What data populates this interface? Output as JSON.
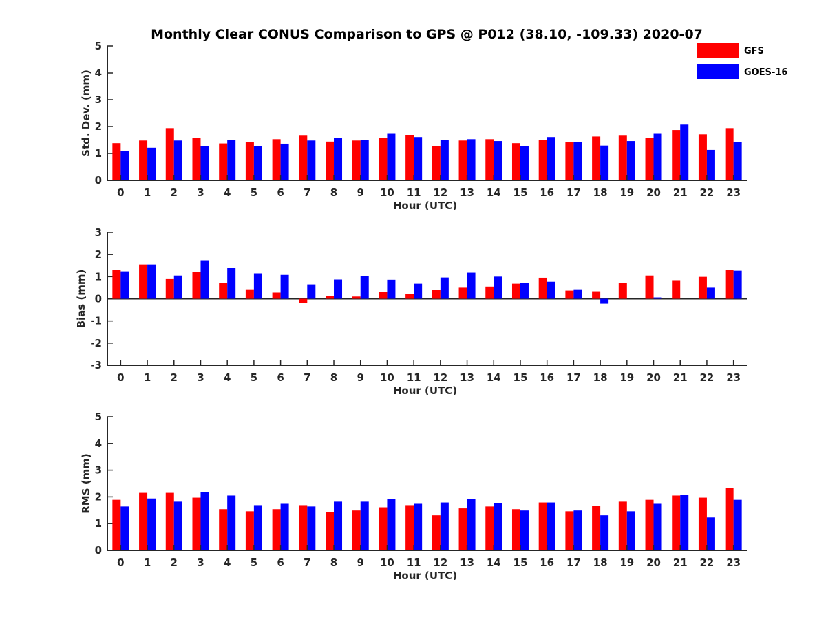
{
  "title": "Monthly Clear CONUS Comparison to GPS @ P012 (38.10, -109.33) 2020-07",
  "legend": {
    "placement": "top-right",
    "entries": [
      {
        "label": "GFS",
        "color": "#ff0000"
      },
      {
        "label": "GOES-16",
        "color": "#0000ff"
      }
    ]
  },
  "chart_data": [
    {
      "type": "bar",
      "xlabel": "Hour (UTC)",
      "ylabel": "Std. Dev. (mm)",
      "ylim": [
        0,
        5
      ],
      "yticks": [
        0,
        1,
        2,
        3,
        4,
        5
      ],
      "categories": [
        "0",
        "1",
        "2",
        "3",
        "4",
        "5",
        "6",
        "7",
        "8",
        "9",
        "10",
        "11",
        "12",
        "13",
        "14",
        "15",
        "16",
        "17",
        "18",
        "19",
        "20",
        "21",
        "22",
        "23"
      ],
      "series": [
        {
          "name": "GFS",
          "color": "#ff0000",
          "values": [
            1.38,
            1.48,
            1.94,
            1.58,
            1.37,
            1.41,
            1.53,
            1.66,
            1.44,
            1.48,
            1.58,
            1.68,
            1.26,
            1.48,
            1.53,
            1.38,
            1.51,
            1.41,
            1.63,
            1.66,
            1.58,
            1.87,
            1.71,
            1.94
          ]
        },
        {
          "name": "GOES-16",
          "color": "#0000ff",
          "values": [
            1.08,
            1.21,
            1.48,
            1.28,
            1.51,
            1.26,
            1.36,
            1.48,
            1.58,
            1.51,
            1.73,
            1.61,
            1.51,
            1.53,
            1.46,
            1.28,
            1.61,
            1.43,
            1.29,
            1.46,
            1.73,
            2.07,
            1.13,
            1.43
          ]
        }
      ]
    },
    {
      "type": "bar",
      "xlabel": "Hour (UTC)",
      "ylabel": "Bias (mm)",
      "ylim": [
        -3,
        3
      ],
      "yticks": [
        -3,
        -2,
        -1,
        0,
        1,
        2,
        3
      ],
      "categories": [
        "0",
        "1",
        "2",
        "3",
        "4",
        "5",
        "6",
        "7",
        "8",
        "9",
        "10",
        "11",
        "12",
        "13",
        "14",
        "15",
        "16",
        "17",
        "18",
        "19",
        "20",
        "21",
        "22",
        "23"
      ],
      "series": [
        {
          "name": "GFS",
          "color": "#ff0000",
          "values": [
            1.31,
            1.55,
            0.92,
            1.21,
            0.71,
            0.43,
            0.28,
            -0.19,
            0.13,
            0.1,
            0.31,
            0.22,
            0.4,
            0.5,
            0.55,
            0.68,
            0.95,
            0.37,
            0.34,
            0.71,
            1.05,
            0.84,
            0.99,
            1.31
          ]
        },
        {
          "name": "GOES-16",
          "color": "#0000ff",
          "values": [
            1.24,
            1.55,
            1.05,
            1.74,
            1.39,
            1.15,
            1.08,
            0.65,
            0.87,
            1.02,
            0.86,
            0.68,
            0.96,
            1.18,
            1.0,
            0.73,
            0.77,
            0.43,
            -0.22,
            0.0,
            0.06,
            0.0,
            0.5,
            1.27
          ]
        }
      ]
    },
    {
      "type": "bar",
      "xlabel": "Hour (UTC)",
      "ylabel": "RMS (mm)",
      "ylim": [
        0,
        5
      ],
      "yticks": [
        0,
        1,
        2,
        3,
        4,
        5
      ],
      "categories": [
        "0",
        "1",
        "2",
        "3",
        "4",
        "5",
        "6",
        "7",
        "8",
        "9",
        "10",
        "11",
        "12",
        "13",
        "14",
        "15",
        "16",
        "17",
        "18",
        "19",
        "20",
        "21",
        "22",
        "23"
      ],
      "series": [
        {
          "name": "GFS",
          "color": "#ff0000",
          "values": [
            1.89,
            2.15,
            2.15,
            1.97,
            1.54,
            1.46,
            1.54,
            1.69,
            1.43,
            1.49,
            1.61,
            1.69,
            1.31,
            1.57,
            1.64,
            1.54,
            1.79,
            1.46,
            1.66,
            1.82,
            1.89,
            2.05,
            1.97,
            2.33
          ]
        },
        {
          "name": "GOES-16",
          "color": "#0000ff",
          "values": [
            1.64,
            1.94,
            1.82,
            2.18,
            2.05,
            1.69,
            1.74,
            1.64,
            1.82,
            1.82,
            1.92,
            1.74,
            1.79,
            1.92,
            1.77,
            1.49,
            1.79,
            1.49,
            1.31,
            1.46,
            1.74,
            2.07,
            1.23,
            1.89
          ]
        }
      ]
    }
  ]
}
